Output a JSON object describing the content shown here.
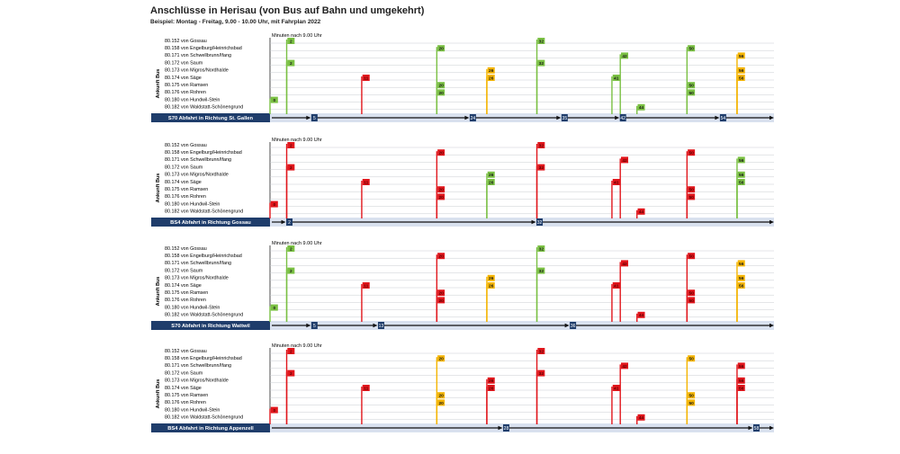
{
  "title": "Anschlüsse in Herisau (von Bus auf Bahn und umgekehrt)",
  "subtitle": "Beispiel: Montag - Freitag, 9.00 - 10.00 Uhr, mit Fahrplan 2022",
  "colors": {
    "green": "#7ac043",
    "red": "#e1161c",
    "yellow": "#f4b400",
    "train": "#1f3d6b",
    "train_band": "#d9e1ef"
  },
  "chart_data": [
    {
      "type": "timeline",
      "xlabel": "Minuten nach 9.00 Uhr",
      "ylabel": "Ankunft Bus",
      "xlim": [
        0,
        60
      ],
      "rows": [
        "80.152 von Gossau",
        "80.158 von Engelburg/Heinrichsbad",
        "80.171 von Schwellbrunn/Ifang",
        "80.172 von Saum",
        "80.173 von Migros/Nordhalde",
        "80.174 von Säge",
        "80.175 von Ramsen",
        "80.176 von Rohren",
        "80.180 von Hundwil-Stein",
        "80.182 von Waldstatt-Schönengrund"
      ],
      "train": {
        "label": "S70 Abfahrt in Richtung St. Gallen",
        "ticks": [
          5,
          24,
          35,
          42,
          54
        ]
      },
      "connections": [
        {
          "row": 0,
          "x": 2,
          "status": "green"
        },
        {
          "row": 0,
          "x": 32,
          "status": "green"
        },
        {
          "row": 1,
          "x": 20,
          "status": "green"
        },
        {
          "row": 1,
          "x": 50,
          "status": "green"
        },
        {
          "row": 2,
          "x": 42,
          "status": "green"
        },
        {
          "row": 2,
          "x": 56,
          "status": "yellow"
        },
        {
          "row": 3,
          "x": 2,
          "status": "green"
        },
        {
          "row": 3,
          "x": 32,
          "status": "green"
        },
        {
          "row": 4,
          "x": 26,
          "status": "yellow"
        },
        {
          "row": 4,
          "x": 56,
          "status": "yellow"
        },
        {
          "row": 5,
          "x": 11,
          "status": "red"
        },
        {
          "row": 5,
          "x": 26,
          "status": "yellow"
        },
        {
          "row": 5,
          "x": 41,
          "status": "green"
        },
        {
          "row": 5,
          "x": 56,
          "status": "yellow"
        },
        {
          "row": 6,
          "x": 20,
          "status": "green"
        },
        {
          "row": 6,
          "x": 50,
          "status": "green"
        },
        {
          "row": 7,
          "x": 20,
          "status": "green"
        },
        {
          "row": 7,
          "x": 50,
          "status": "green"
        },
        {
          "row": 8,
          "x": 0,
          "status": "green"
        },
        {
          "row": 9,
          "x": 44,
          "status": "green"
        }
      ]
    },
    {
      "type": "timeline",
      "xlabel": "Minuten nach 9.00 Uhr",
      "ylabel": "Ankunft Bus",
      "xlim": [
        0,
        60
      ],
      "rows": [
        "80.152 von Gossau",
        "80.158 von Engelburg/Heinrichsbad",
        "80.171 von Schwellbrunn/Ifang",
        "80.172 von Saum",
        "80.173 von Migros/Nordhalde",
        "80.174 von Säge",
        "80.175 von Ramsen",
        "80.176 von Rohren",
        "80.180 von Hundwil-Stein",
        "80.182 von Waldstatt-Schönengrund"
      ],
      "train": {
        "label": "BS4 Abfahrt in Richtung Gossau",
        "ticks": [
          2,
          32
        ]
      },
      "connections": [
        {
          "row": 0,
          "x": 2,
          "status": "red"
        },
        {
          "row": 0,
          "x": 32,
          "status": "red"
        },
        {
          "row": 1,
          "x": 20,
          "status": "red"
        },
        {
          "row": 1,
          "x": 50,
          "status": "red"
        },
        {
          "row": 2,
          "x": 42,
          "status": "red"
        },
        {
          "row": 2,
          "x": 56,
          "status": "green"
        },
        {
          "row": 3,
          "x": 2,
          "status": "red"
        },
        {
          "row": 3,
          "x": 32,
          "status": "red"
        },
        {
          "row": 4,
          "x": 26,
          "status": "green"
        },
        {
          "row": 4,
          "x": 56,
          "status": "green"
        },
        {
          "row": 5,
          "x": 11,
          "status": "red"
        },
        {
          "row": 5,
          "x": 26,
          "status": "green"
        },
        {
          "row": 5,
          "x": 41,
          "status": "red"
        },
        {
          "row": 5,
          "x": 56,
          "status": "green"
        },
        {
          "row": 6,
          "x": 20,
          "status": "red"
        },
        {
          "row": 6,
          "x": 50,
          "status": "red"
        },
        {
          "row": 7,
          "x": 20,
          "status": "red"
        },
        {
          "row": 7,
          "x": 50,
          "status": "red"
        },
        {
          "row": 8,
          "x": 0,
          "status": "red"
        },
        {
          "row": 9,
          "x": 44,
          "status": "red"
        }
      ]
    },
    {
      "type": "timeline",
      "xlabel": "Minuten nach 9.00 Uhr",
      "ylabel": "Ankunft Bus",
      "xlim": [
        0,
        60
      ],
      "rows": [
        "80.152 von Gossau",
        "80.158 von Engelburg/Heinrichsbad",
        "80.171 von Schwellbrunn/Ifang",
        "80.172 von Saum",
        "80.173 von Migros/Nordhalde",
        "80.174 von Säge",
        "80.175 von Ramsen",
        "80.176 von Rohren",
        "80.180 von Hundwil-Stein",
        "80.182 von Waldstatt-Schönengrund"
      ],
      "train": {
        "label": "S70 Abfahrt in Richtung Wattwil",
        "ticks": [
          5,
          13,
          36
        ]
      },
      "connections": [
        {
          "row": 0,
          "x": 2,
          "status": "green"
        },
        {
          "row": 0,
          "x": 32,
          "status": "green"
        },
        {
          "row": 1,
          "x": 20,
          "status": "red"
        },
        {
          "row": 1,
          "x": 50,
          "status": "red"
        },
        {
          "row": 2,
          "x": 42,
          "status": "red"
        },
        {
          "row": 2,
          "x": 56,
          "status": "yellow"
        },
        {
          "row": 3,
          "x": 2,
          "status": "green"
        },
        {
          "row": 3,
          "x": 32,
          "status": "green"
        },
        {
          "row": 4,
          "x": 26,
          "status": "yellow"
        },
        {
          "row": 4,
          "x": 56,
          "status": "yellow"
        },
        {
          "row": 5,
          "x": 11,
          "status": "red"
        },
        {
          "row": 5,
          "x": 26,
          "status": "yellow"
        },
        {
          "row": 5,
          "x": 41,
          "status": "red"
        },
        {
          "row": 5,
          "x": 56,
          "status": "yellow"
        },
        {
          "row": 6,
          "x": 20,
          "status": "red"
        },
        {
          "row": 6,
          "x": 50,
          "status": "red"
        },
        {
          "row": 7,
          "x": 20,
          "status": "red"
        },
        {
          "row": 7,
          "x": 50,
          "status": "red"
        },
        {
          "row": 8,
          "x": 0,
          "status": "green"
        },
        {
          "row": 9,
          "x": 44,
          "status": "red"
        }
      ]
    },
    {
      "type": "timeline",
      "xlabel": "Minuten nach 9.00 Uhr",
      "ylabel": "Ankunft Bus",
      "xlim": [
        0,
        60
      ],
      "rows": [
        "80.152 von Gossau",
        "80.158 von Engelburg/Heinrichsbad",
        "80.171 von Schwellbrunn/Ifang",
        "80.172 von Saum",
        "80.173 von Migros/Nordhalde",
        "80.174 von Säge",
        "80.175 von Ramsen",
        "80.176 von Rohren",
        "80.180 von Hundwil-Stein",
        "80.182 von Waldstatt-Schönengrund"
      ],
      "train": {
        "label": "BS4 Abfahrt in Richtung Appenzell",
        "ticks": [
          28,
          58
        ]
      },
      "connections": [
        {
          "row": 0,
          "x": 2,
          "status": "red"
        },
        {
          "row": 0,
          "x": 32,
          "status": "red"
        },
        {
          "row": 1,
          "x": 20,
          "status": "yellow"
        },
        {
          "row": 1,
          "x": 50,
          "status": "yellow"
        },
        {
          "row": 2,
          "x": 42,
          "status": "red"
        },
        {
          "row": 2,
          "x": 56,
          "status": "red"
        },
        {
          "row": 3,
          "x": 2,
          "status": "red"
        },
        {
          "row": 3,
          "x": 32,
          "status": "red"
        },
        {
          "row": 4,
          "x": 26,
          "status": "red"
        },
        {
          "row": 4,
          "x": 56,
          "status": "red"
        },
        {
          "row": 5,
          "x": 11,
          "status": "red"
        },
        {
          "row": 5,
          "x": 26,
          "status": "red"
        },
        {
          "row": 5,
          "x": 41,
          "status": "red"
        },
        {
          "row": 5,
          "x": 56,
          "status": "red"
        },
        {
          "row": 6,
          "x": 20,
          "status": "yellow"
        },
        {
          "row": 6,
          "x": 50,
          "status": "yellow"
        },
        {
          "row": 7,
          "x": 20,
          "status": "yellow"
        },
        {
          "row": 7,
          "x": 50,
          "status": "yellow"
        },
        {
          "row": 8,
          "x": 0,
          "status": "red"
        },
        {
          "row": 9,
          "x": 44,
          "status": "red"
        }
      ]
    }
  ]
}
